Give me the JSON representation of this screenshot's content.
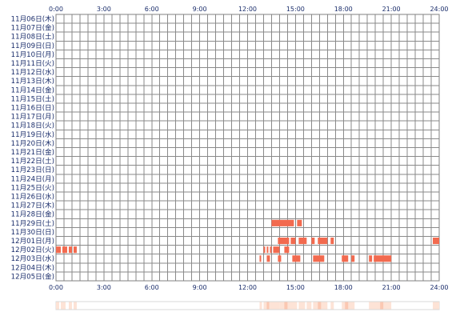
{
  "chart_data": {
    "type": "heatmap",
    "title": "",
    "xlabel": "",
    "ylabel": "",
    "x_ticks": [
      "0:00",
      "3:00",
      "6:00",
      "9:00",
      "12:00",
      "15:00",
      "18:00",
      "21:00",
      "24:00"
    ],
    "x_range_hours": [
      0,
      24
    ],
    "grid": true,
    "rows": [
      "11月06日(木)",
      "11月07日(金)",
      "11月08日(土)",
      "11月09日(日)",
      "11月10日(月)",
      "11月11日(火)",
      "11月12日(水)",
      "11月13日(木)",
      "11月14日(金)",
      "11月15日(土)",
      "11月16日(日)",
      "11月17日(月)",
      "11月18日(火)",
      "11月19日(水)",
      "11月20日(木)",
      "11月21日(金)",
      "11月22日(土)",
      "11月23日(日)",
      "11月24日(月)",
      "11月25日(火)",
      "11月26日(水)",
      "11月27日(木)",
      "11月28日(金)",
      "11月29日(土)",
      "11月30日(日)",
      "12月01日(月)",
      "12月02日(火)",
      "12月03日(水)",
      "12月04日(木)",
      "12月05日(金)"
    ],
    "activity": [
      {
        "day": "11月29日(土)",
        "spans": [
          [
            13.5,
            14.9
          ],
          [
            15.1,
            15.4
          ]
        ]
      },
      {
        "day": "12月01日(月)",
        "spans": [
          [
            13.9,
            14.6
          ],
          [
            14.7,
            15.0
          ],
          [
            15.2,
            15.7
          ],
          [
            16.0,
            16.2
          ],
          [
            16.4,
            17.0
          ],
          [
            17.2,
            17.4
          ],
          [
            23.6,
            24.0
          ]
        ]
      },
      {
        "day": "12月02日(火)",
        "spans": [
          [
            0.0,
            0.3
          ],
          [
            0.4,
            0.7
          ],
          [
            0.8,
            1.0
          ],
          [
            1.1,
            1.3
          ],
          [
            13.0,
            13.1
          ],
          [
            13.2,
            13.3
          ],
          [
            13.4,
            13.5
          ],
          [
            13.6,
            14.0
          ],
          [
            14.3,
            14.6
          ]
        ]
      },
      {
        "day": "12月03日(水)",
        "spans": [
          [
            12.75,
            12.85
          ],
          [
            13.2,
            13.4
          ],
          [
            13.9,
            14.1
          ],
          [
            14.8,
            15.3
          ],
          [
            16.1,
            16.8
          ],
          [
            17.9,
            18.3
          ],
          [
            18.5,
            18.7
          ],
          [
            19.6,
            19.8
          ],
          [
            19.9,
            21.0
          ]
        ]
      }
    ],
    "summary_spans": [
      {
        "span": [
          0.0,
          0.2
        ],
        "level": 1
      },
      {
        "span": [
          0.3,
          0.6
        ],
        "level": 1
      },
      {
        "span": [
          0.8,
          1.0
        ],
        "level": 1
      },
      {
        "span": [
          1.1,
          1.3
        ],
        "level": 1
      },
      {
        "span": [
          12.75,
          12.9
        ],
        "level": 1
      },
      {
        "span": [
          13.0,
          14.0
        ],
        "level": 1
      },
      {
        "span": [
          13.2,
          13.35
        ],
        "level": 2
      },
      {
        "span": [
          14.0,
          15.1
        ],
        "level": 1
      },
      {
        "span": [
          14.3,
          14.5
        ],
        "level": 2
      },
      {
        "span": [
          15.2,
          15.6
        ],
        "level": 1
      },
      {
        "span": [
          15.7,
          16.0
        ],
        "level": 1
      },
      {
        "span": [
          16.1,
          17.0
        ],
        "level": 1
      },
      {
        "span": [
          16.4,
          16.6
        ],
        "level": 2
      },
      {
        "span": [
          17.2,
          17.4
        ],
        "level": 1
      },
      {
        "span": [
          17.9,
          18.7
        ],
        "level": 1
      },
      {
        "span": [
          18.1,
          18.3
        ],
        "level": 2
      },
      {
        "span": [
          19.6,
          21.0
        ],
        "level": 1
      },
      {
        "span": [
          20.3,
          20.5
        ],
        "level": 2
      },
      {
        "span": [
          23.6,
          24.0
        ],
        "level": 1
      }
    ],
    "colors": {
      "activity": "#f26a4f",
      "grid": "#8a8a8a",
      "border": "#808080",
      "tick_text": "#1a2d6b",
      "summary_light": "#fde3d6",
      "summary_medium": "#fbc8b2"
    }
  }
}
